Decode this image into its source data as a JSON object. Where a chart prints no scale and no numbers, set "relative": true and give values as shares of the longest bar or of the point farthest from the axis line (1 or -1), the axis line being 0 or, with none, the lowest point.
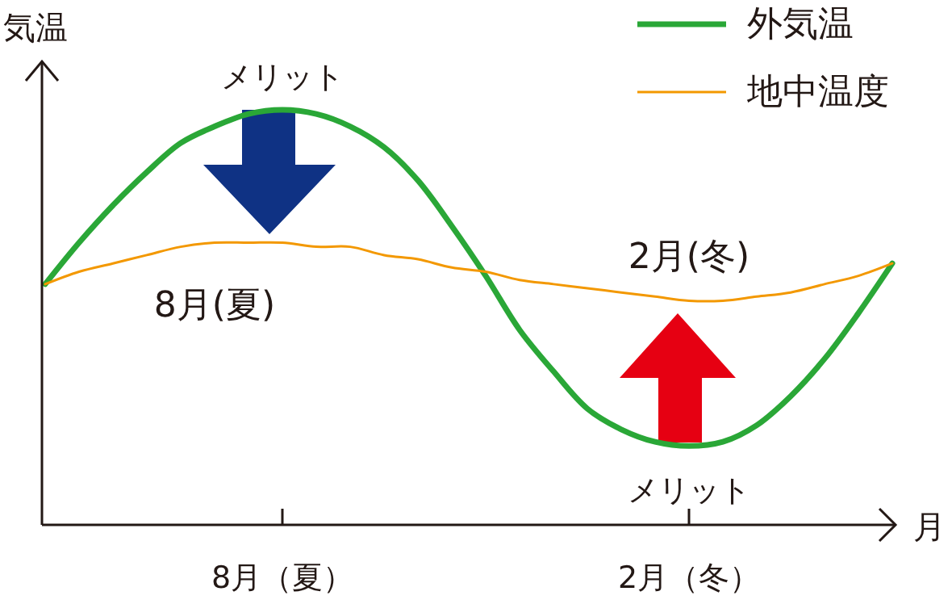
{
  "chart_data": {
    "type": "line",
    "relative": true,
    "ylabel": "気温",
    "xlabel": "月",
    "categories": [
      null,
      null,
      null,
      null,
      null,
      null,
      null,
      "8月（夏）",
      null,
      null,
      null,
      null,
      null,
      null,
      null,
      null,
      null,
      null,
      null,
      "2月（冬）",
      null,
      null,
      null,
      null,
      null,
      null
    ],
    "series": [
      {
        "name": "外気温",
        "color": "#2aa737",
        "values": [
          0.58,
          0.68,
          0.77,
          0.85,
          0.92,
          0.96,
          0.99,
          1,
          0.99,
          0.96,
          0.91,
          0.83,
          0.72,
          0.6,
          0.47,
          0.37,
          0.28,
          0.23,
          0.2,
          0.19,
          0.2,
          0.24,
          0.31,
          0.4,
          0.51,
          0.63
        ]
      },
      {
        "name": "地中温度",
        "color": "#f39800",
        "values": [
          0.58,
          0.61,
          0.63,
          0.65,
          0.67,
          0.68,
          0.68,
          0.68,
          0.67,
          0.67,
          0.65,
          0.64,
          0.62,
          0.61,
          0.59,
          0.58,
          0.57,
          0.56,
          0.55,
          0.54,
          0.54,
          0.55,
          0.56,
          0.58,
          0.6,
          0.63
        ]
      }
    ],
    "legend": "top right",
    "marker": "none",
    "line_style": "solid",
    "annotations": [
      "メリット",
      "メリット",
      "8月(夏)",
      "2月(冬)"
    ]
  }
}
